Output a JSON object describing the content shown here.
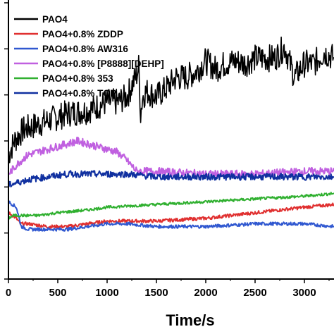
{
  "chart_data": {
    "type": "line",
    "title": "",
    "xlabel": "Time/s",
    "ylabel": "",
    "xlim": [
      0,
      3300
    ],
    "ylim": [
      0,
      1
    ],
    "x_ticks": [
      0,
      500,
      1000,
      1500,
      2000,
      2500,
      3000
    ],
    "x_tick_labels": [
      "0",
      "500",
      "1000",
      "1500",
      "2000",
      "2500",
      "3000"
    ],
    "grid": false,
    "legend_position": "top-left",
    "series": [
      {
        "name": "PAO4",
        "color": "#000000",
        "x": [
          0,
          60,
          150,
          300,
          450,
          600,
          800,
          1000,
          1100,
          1200,
          1300,
          1320,
          1340,
          1360,
          1400,
          1500,
          1600,
          1700,
          1800,
          1900,
          2000,
          2100,
          2200,
          2300,
          2400,
          2500,
          2600,
          2700,
          2800,
          2900,
          3000,
          3100,
          3200,
          3300
        ],
        "y": [
          0.45,
          0.5,
          0.54,
          0.56,
          0.58,
          0.6,
          0.61,
          0.64,
          0.64,
          0.66,
          0.74,
          0.77,
          0.6,
          0.66,
          0.68,
          0.66,
          0.69,
          0.73,
          0.73,
          0.75,
          0.79,
          0.76,
          0.78,
          0.79,
          0.78,
          0.8,
          0.8,
          0.8,
          0.84,
          0.73,
          0.78,
          0.78,
          0.82,
          0.8
        ]
      },
      {
        "name": "PAO4+0.8% ZDDP",
        "color": "#e03030",
        "x": [
          0,
          80,
          120,
          200,
          400,
          600,
          800,
          1000,
          1200,
          1500,
          2000,
          2500,
          3000,
          3300
        ],
        "y": [
          0.24,
          0.22,
          0.2,
          0.2,
          0.19,
          0.19,
          0.2,
          0.21,
          0.21,
          0.21,
          0.22,
          0.24,
          0.26,
          0.27
        ]
      },
      {
        "name": "PAO4+0.8% AW316",
        "color": "#3058d0",
        "x": [
          0,
          80,
          130,
          200,
          400,
          600,
          800,
          1000,
          1200,
          1500,
          2000,
          2500,
          3000,
          3300
        ],
        "y": [
          0.28,
          0.26,
          0.19,
          0.18,
          0.18,
          0.18,
          0.19,
          0.2,
          0.2,
          0.19,
          0.19,
          0.2,
          0.2,
          0.19
        ]
      },
      {
        "name": "PAO4+0.8% [P8888][DEHP]",
        "color": "#c060e0",
        "x": [
          0,
          100,
          200,
          400,
          600,
          700,
          800,
          900,
          1000,
          1100,
          1200,
          1300,
          1500,
          2000,
          2500,
          3000,
          3300
        ],
        "y": [
          0.38,
          0.42,
          0.45,
          0.47,
          0.49,
          0.5,
          0.49,
          0.48,
          0.47,
          0.46,
          0.43,
          0.39,
          0.39,
          0.38,
          0.38,
          0.39,
          0.39
        ]
      },
      {
        "name": "PAO4+0.8% 353",
        "color": "#30b030",
        "x": [
          0,
          50,
          150,
          300,
          500,
          800,
          1000,
          1500,
          2000,
          2500,
          3000,
          3300
        ],
        "y": [
          0.22,
          0.23,
          0.23,
          0.23,
          0.24,
          0.25,
          0.26,
          0.27,
          0.28,
          0.29,
          0.3,
          0.31
        ]
      },
      {
        "name": "PAO4+0.8% TCP",
        "color": "#1030a0",
        "x": [
          0,
          100,
          200,
          400,
          600,
          800,
          1000,
          1200,
          1500,
          2000,
          2500,
          3000,
          3300
        ],
        "y": [
          0.34,
          0.35,
          0.36,
          0.37,
          0.38,
          0.38,
          0.38,
          0.38,
          0.37,
          0.37,
          0.37,
          0.37,
          0.37
        ]
      }
    ]
  }
}
